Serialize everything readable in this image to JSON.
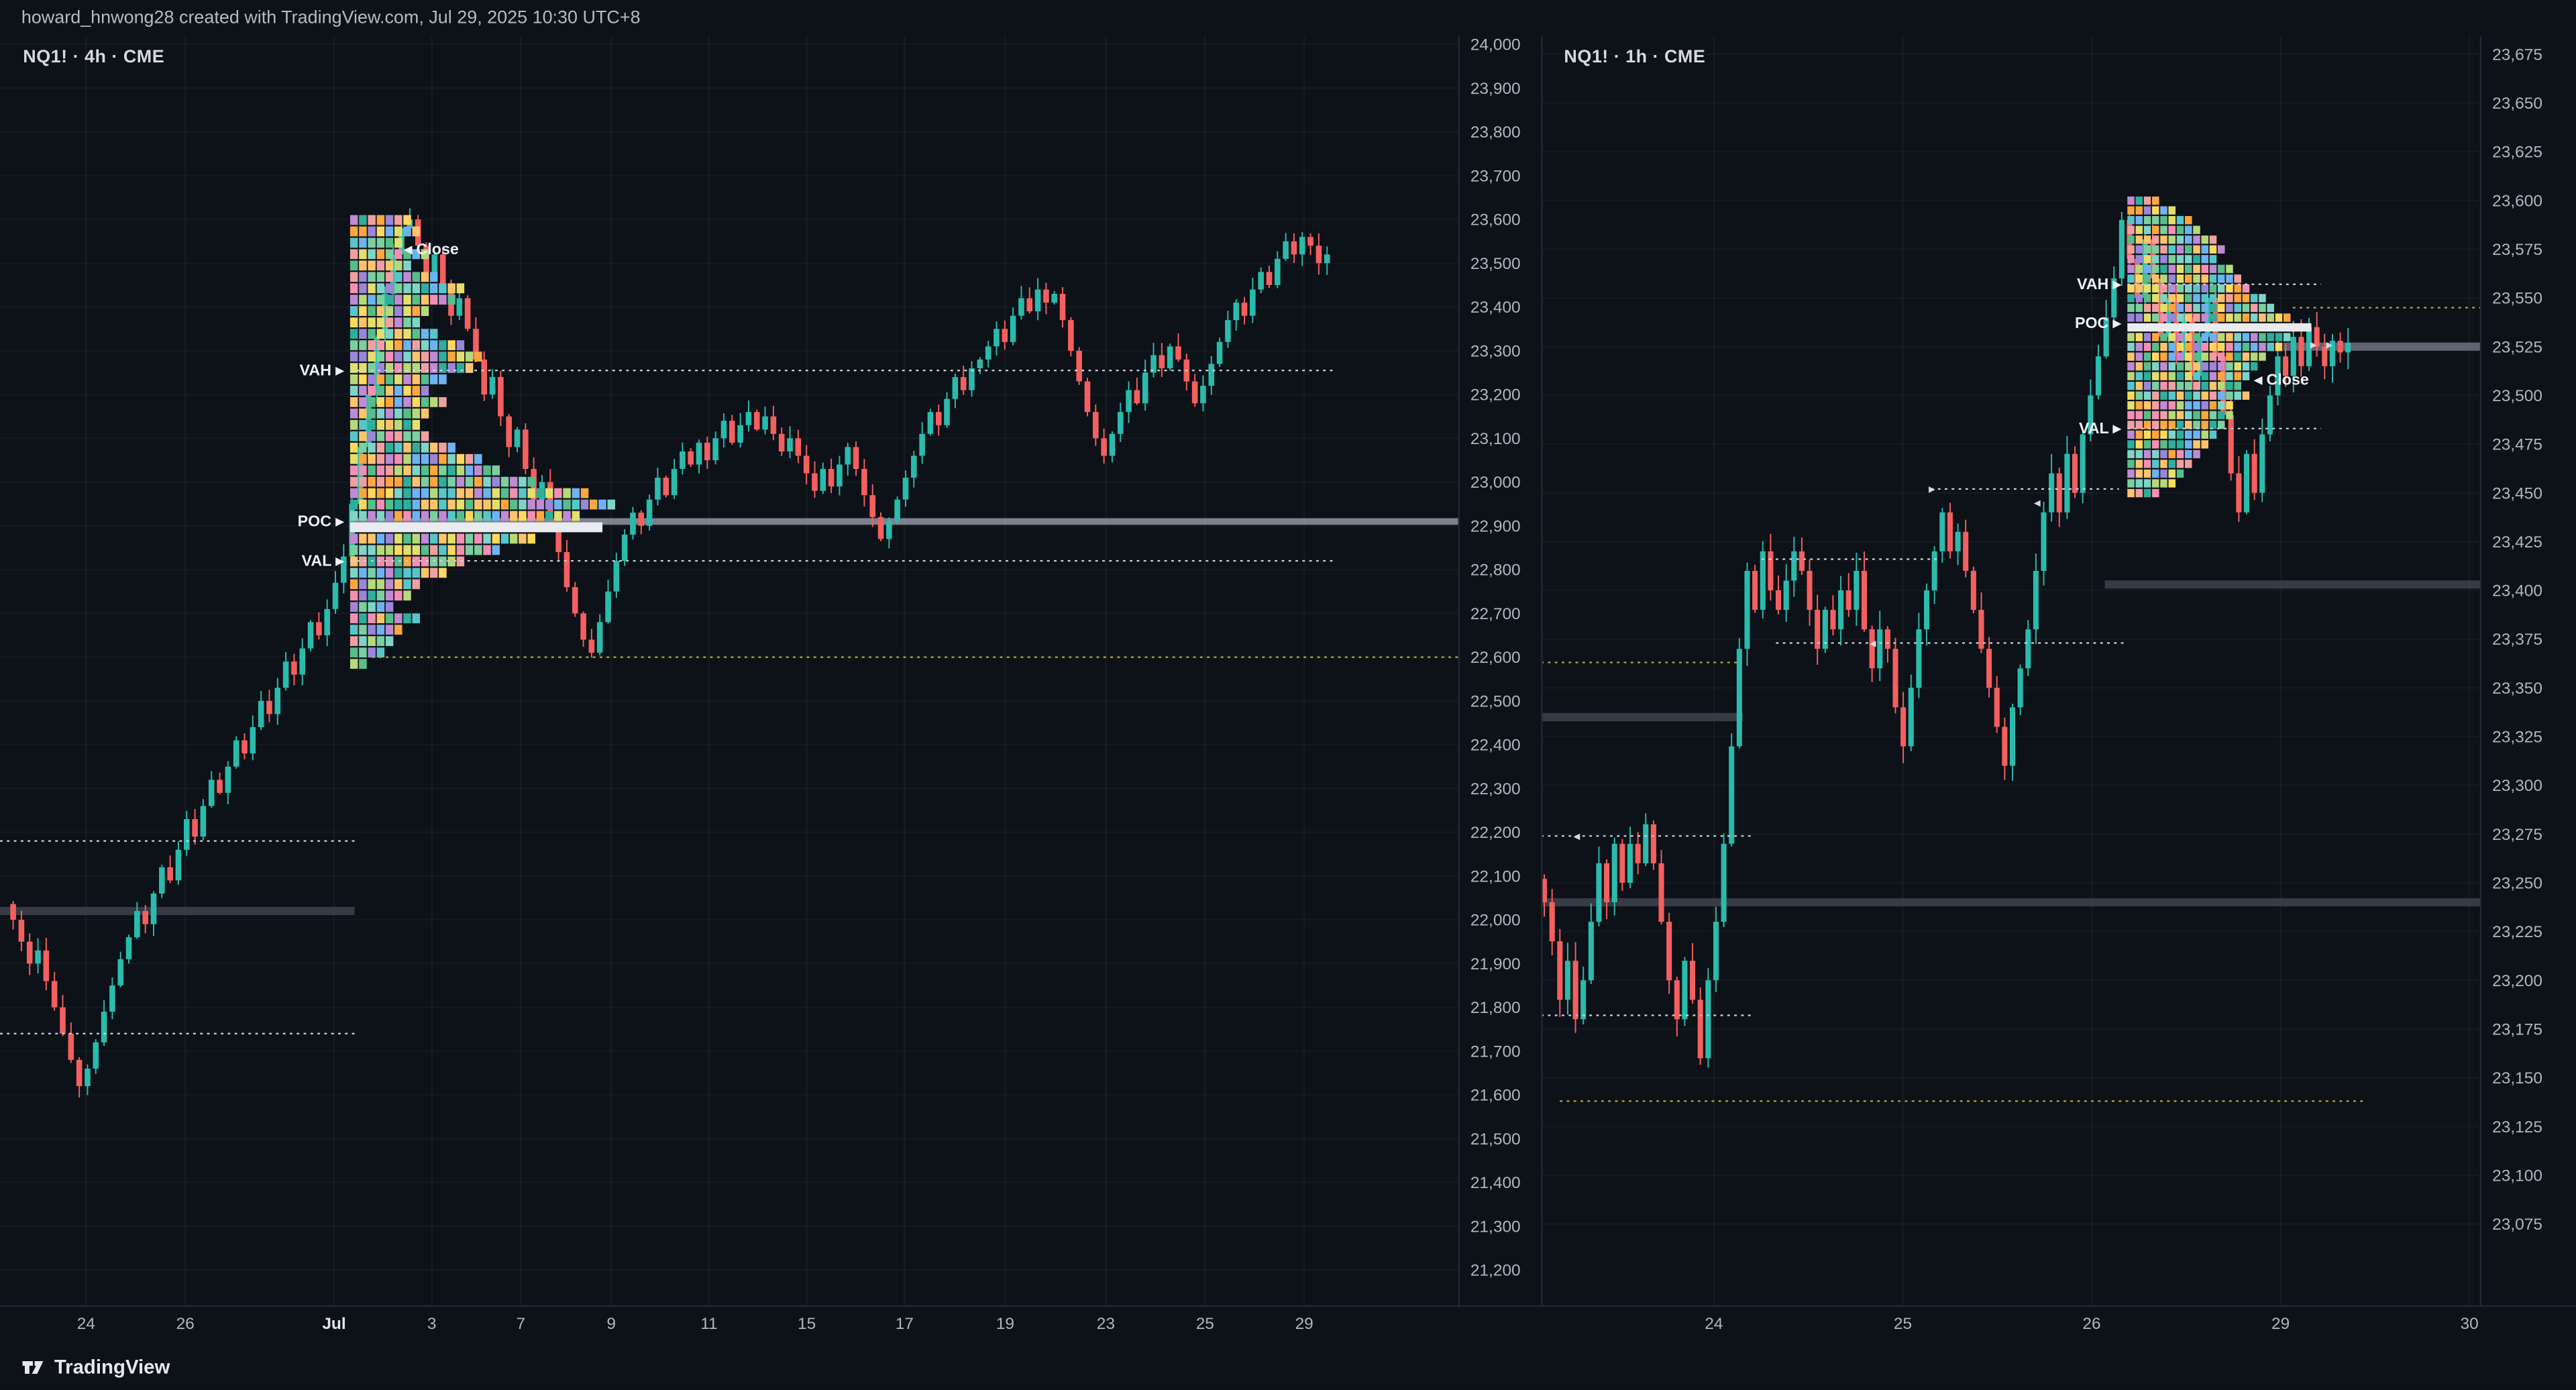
{
  "page": {
    "attribution": "howard_hnwong28 created with TradingView.com, Jul 29, 2025 10:30 UTC+8",
    "brand": "TradingView"
  },
  "colors": {
    "up": "#2abbac",
    "down": "#f4605f",
    "axis_text": "#b2b5be",
    "chart_bg": "#0d1118",
    "poc_row": "#e9ebef",
    "dotted_white": "#cfd3dc",
    "dotted_yellow": "#b3aa44",
    "band_dark": "#3f434e",
    "band_light": "#9096a2",
    "profile_palette": [
      "#57bd8a",
      "#7ccf9f",
      "#2fae9b",
      "#7fd4c8",
      "#ffa63f",
      "#ffc46b",
      "#f28fb4",
      "#f0a0a0",
      "#c08ad4",
      "#9b86d8",
      "#ffd95e",
      "#6db3f2",
      "#e2e06a",
      "#58c6c9",
      "#b6d97a"
    ]
  },
  "chart_data": [
    {
      "type": "candlestick",
      "title": "NQ1! 4h with volume profile",
      "legend": "NQ1! · 4h · CME",
      "symbol": "NQ1!",
      "interval": "4h",
      "exchange": "CME",
      "xlabel": "",
      "ylabel": "",
      "ylim": [
        21200,
        24000
      ],
      "price_axis": {
        "ticks": [
          24000,
          23900,
          23800,
          23700,
          23600,
          23500,
          23400,
          23300,
          23200,
          23100,
          23000,
          22900,
          22800,
          22700,
          22600,
          22500,
          22400,
          22300,
          22200,
          22100,
          22000,
          21900,
          21800,
          21700,
          21600,
          21500,
          21400,
          21300,
          21200
        ]
      },
      "time_axis": [
        {
          "label": "24",
          "xf": 0.059
        },
        {
          "label": "26",
          "xf": 0.127
        },
        {
          "label": "Jul",
          "xf": 0.229,
          "major": true
        },
        {
          "label": "3",
          "xf": 0.296
        },
        {
          "label": "7",
          "xf": 0.357
        },
        {
          "label": "9",
          "xf": 0.419
        },
        {
          "label": "11",
          "xf": 0.486
        },
        {
          "label": "15",
          "xf": 0.553
        },
        {
          "label": "17",
          "xf": 0.62
        },
        {
          "label": "19",
          "xf": 0.689
        },
        {
          "label": "23",
          "xf": 0.758
        },
        {
          "label": "25",
          "xf": 0.826
        },
        {
          "label": "29",
          "xf": 0.894
        }
      ],
      "candles_close": [
        22000,
        21950,
        21900,
        21930,
        21860,
        21800,
        21740,
        21680,
        21620,
        21660,
        21720,
        21790,
        21850,
        21910,
        21960,
        22020,
        21990,
        22060,
        22120,
        22090,
        22160,
        22230,
        22190,
        22260,
        22320,
        22290,
        22350,
        22410,
        22380,
        22440,
        22500,
        22470,
        22530,
        22590,
        22560,
        22620,
        22680,
        22650,
        22710,
        22770,
        22830,
        22950,
        23080,
        23200,
        23330,
        23430,
        23520,
        23580,
        23600,
        23540,
        23480,
        23520,
        23450,
        23380,
        23420,
        23350,
        23280,
        23200,
        23240,
        23150,
        23080,
        23120,
        23030,
        22960,
        23000,
        22900,
        22840,
        22760,
        22700,
        22640,
        22610,
        22680,
        22750,
        22820,
        22880,
        22930,
        22900,
        22960,
        23010,
        22970,
        23030,
        23070,
        23040,
        23090,
        23050,
        23100,
        23140,
        23090,
        23130,
        23160,
        23120,
        23150,
        23110,
        23070,
        23100,
        23060,
        23020,
        22980,
        23030,
        22990,
        23040,
        23080,
        23030,
        22970,
        22920,
        22870,
        22910,
        22960,
        23010,
        23060,
        23110,
        23160,
        23130,
        23190,
        23240,
        23210,
        23260,
        23280,
        23310,
        23350,
        23320,
        23380,
        23420,
        23390,
        23440,
        23410,
        23430,
        23370,
        23300,
        23230,
        23160,
        23100,
        23060,
        23110,
        23160,
        23210,
        23180,
        23250,
        23290,
        23260,
        23310,
        23280,
        23230,
        23180,
        23220,
        23270,
        23320,
        23370,
        23410,
        23380,
        23440,
        23480,
        23450,
        23510,
        23550,
        23520,
        23560,
        23540,
        23500,
        23520
      ],
      "levels": {
        "vah": 23255,
        "poc": 22910,
        "val": 22820,
        "close": 23532
      },
      "labels": {
        "vah": "VAH",
        "poc": "POC",
        "val": "VAL",
        "close": "Close"
      },
      "close_label": {
        "xf": 0.277
      },
      "profile": {
        "xf": 0.24,
        "price_top": 23610,
        "row_step": 26,
        "poc_row": 27,
        "widths": [
          0.22,
          0.28,
          0.2,
          0.3,
          0.24,
          0.34,
          0.44,
          0.4,
          0.3,
          0.26,
          0.34,
          0.44,
          0.52,
          0.46,
          0.38,
          0.32,
          0.38,
          0.3,
          0.26,
          0.32,
          0.42,
          0.5,
          0.58,
          0.7,
          0.92,
          1.0,
          0.88,
          0.96,
          0.72,
          0.56,
          0.44,
          0.36,
          0.28,
          0.22,
          0.18,
          0.26,
          0.2,
          0.16,
          0.12,
          0.08
        ]
      },
      "lines": [
        {
          "p": 23255,
          "x1": 0.24,
          "x2": 0.915,
          "style": "dot",
          "c": "#cfd3dc"
        },
        {
          "p": 22820,
          "x1": 0.24,
          "x2": 0.915,
          "style": "dot",
          "c": "#cfd3dc"
        },
        {
          "p": 22600,
          "x1": 0.255,
          "x2": 1.0,
          "style": "dot",
          "c": "#b3aa44"
        },
        {
          "p": 22180,
          "x1": 0,
          "x2": 0.243,
          "style": "dot",
          "c": "#cfd3dc"
        },
        {
          "p": 21740,
          "x1": 0,
          "x2": 0.243,
          "style": "dot",
          "c": "#cfd3dc"
        },
        {
          "p": 22910,
          "x1": 0.24,
          "x2": 1.0,
          "style": "band",
          "c": "#9096a2",
          "w": 4
        },
        {
          "p": 22020,
          "x1": 0,
          "x2": 0.243,
          "style": "band",
          "c": "#3f434e",
          "w": 5
        }
      ],
      "markers": []
    },
    {
      "type": "candlestick",
      "title": "NQ1! 1h with volume profile",
      "legend": "NQ1! · 1h · CME",
      "symbol": "NQ1!",
      "interval": "1h",
      "exchange": "CME",
      "xlabel": "",
      "ylabel": "",
      "ylim": [
        23075,
        23675
      ],
      "price_axis": {
        "ticks": [
          23675,
          23650,
          23625,
          23600,
          23575,
          23550,
          23525,
          23500,
          23475,
          23450,
          23425,
          23400,
          23375,
          23350,
          23325,
          23300,
          23275,
          23250,
          23225,
          23200,
          23175,
          23150,
          23125,
          23100,
          23075
        ]
      },
      "time_axis": [
        {
          "label": "24",
          "xf": 0.184
        },
        {
          "label": "25",
          "xf": 0.385
        },
        {
          "label": "26",
          "xf": 0.586
        },
        {
          "label": "29",
          "xf": 0.787
        },
        {
          "label": "30",
          "xf": 0.988
        }
      ],
      "candles_close": [
        23240,
        23220,
        23190,
        23210,
        23180,
        23200,
        23230,
        23260,
        23240,
        23270,
        23250,
        23270,
        23260,
        23280,
        23260,
        23230,
        23200,
        23180,
        23210,
        23190,
        23160,
        23200,
        23230,
        23270,
        23320,
        23370,
        23410,
        23390,
        23420,
        23400,
        23390,
        23405,
        23420,
        23410,
        23390,
        23370,
        23390,
        23380,
        23400,
        23390,
        23410,
        23380,
        23360,
        23380,
        23370,
        23340,
        23320,
        23350,
        23380,
        23400,
        23420,
        23440,
        23420,
        23430,
        23410,
        23390,
        23370,
        23350,
        23330,
        23310,
        23340,
        23360,
        23380,
        23410,
        23440,
        23460,
        23440,
        23470,
        23450,
        23480,
        23500,
        23520,
        23540,
        23560,
        23590,
        23570,
        23550,
        23580,
        23560,
        23530,
        23550,
        23520,
        23540,
        23510,
        23530,
        23550,
        23520,
        23490,
        23460,
        23440,
        23470,
        23450,
        23480,
        23500,
        23520,
        23510,
        23530,
        23515,
        23535,
        23525,
        23515,
        23528,
        23522,
        23527
      ],
      "levels": {
        "vah": 23557,
        "poc": 23537,
        "val": 23483,
        "close": 23508
      },
      "labels": {
        "vah": "VAH",
        "poc": "POC",
        "val": "VAL",
        "close": "Close"
      },
      "close_label": {
        "xf": 0.759
      },
      "profile": {
        "xf": 0.624,
        "price_top": 23602,
        "row_step": 5,
        "poc_row": 13,
        "widths": [
          0.18,
          0.25,
          0.34,
          0.42,
          0.48,
          0.54,
          0.5,
          0.58,
          0.64,
          0.68,
          0.74,
          0.8,
          0.9,
          1.0,
          0.88,
          0.84,
          0.78,
          0.72,
          0.66,
          0.64,
          0.66,
          0.6,
          0.56,
          0.52,
          0.48,
          0.44,
          0.4,
          0.36,
          0.32,
          0.26,
          0.2
        ]
      },
      "lines": [
        {
          "p": 23557,
          "x1": 0.624,
          "x2": 0.83,
          "style": "dot",
          "c": "#cfd3dc"
        },
        {
          "p": 23483,
          "x1": 0.624,
          "x2": 0.83,
          "style": "dot",
          "c": "#cfd3dc"
        },
        {
          "p": 23545,
          "x1": 0.8,
          "x2": 1.0,
          "style": "dot",
          "c": "#b3aa44"
        },
        {
          "p": 23138,
          "x1": 0.02,
          "x2": 0.875,
          "style": "dot",
          "c": "#b3aa44"
        },
        {
          "p": 23363,
          "x1": 0,
          "x2": 0.21,
          "style": "dot",
          "c": "#b3aa44"
        },
        {
          "p": 23416,
          "x1": 0.235,
          "x2": 0.425,
          "style": "dot",
          "c": "#cfd3dc"
        },
        {
          "p": 23373,
          "x1": 0.25,
          "x2": 0.62,
          "style": "dot",
          "c": "#cfd3dc"
        },
        {
          "p": 23452,
          "x1": 0.415,
          "x2": 0.615,
          "style": "dot",
          "c": "#cfd3dc"
        },
        {
          "p": 23274,
          "x1": 0,
          "x2": 0.225,
          "style": "dot",
          "c": "#cfd3dc"
        },
        {
          "p": 23182,
          "x1": 0,
          "x2": 0.225,
          "style": "dot",
          "c": "#cfd3dc"
        },
        {
          "p": 23525,
          "x1": 0.79,
          "x2": 1.0,
          "style": "band",
          "c": "#6e7280",
          "w": 5
        },
        {
          "p": 23403,
          "x1": 0.6,
          "x2": 1.0,
          "style": "band",
          "c": "#3f434e",
          "w": 5
        },
        {
          "p": 23240,
          "x1": 0,
          "x2": 1.0,
          "style": "band",
          "c": "#3f434e",
          "w": 5
        },
        {
          "p": 23335,
          "x1": 0,
          "x2": 0.215,
          "style": "band",
          "c": "#3f434e",
          "w": 5
        }
      ],
      "markers": [
        {
          "xf": 0.038,
          "p": 23274,
          "d": "l"
        },
        {
          "xf": 0.353,
          "p": 23373,
          "d": "l"
        },
        {
          "xf": 0.416,
          "p": 23452,
          "d": "r"
        },
        {
          "xf": 0.528,
          "p": 23445,
          "d": "l"
        },
        {
          "xf": 0.822,
          "p": 23526,
          "d": "r"
        },
        {
          "xf": 0.839,
          "p": 23526,
          "d": "r"
        }
      ]
    }
  ]
}
